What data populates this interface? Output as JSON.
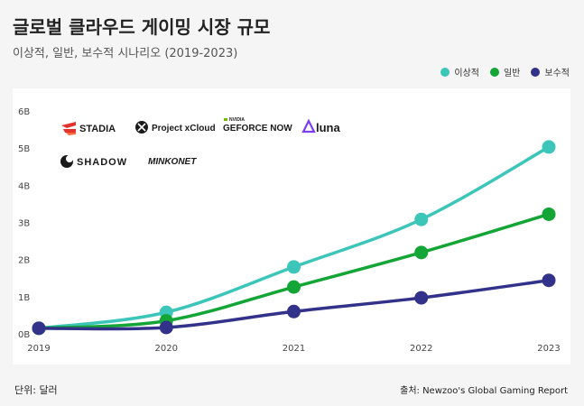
{
  "title": "글로벌 클라우드 게이밍 시장 규모",
  "subtitle": "이상적, 일반, 보수적 시나리오 (2019-2023)",
  "footer": {
    "unit": "단위: 달러",
    "source": "출처: Newzoo's Global Gaming Report"
  },
  "logos": [
    "STADIA",
    "Project xCloud",
    "GEFORCE NOW",
    "luna",
    "SHADOW",
    "MINKONET"
  ],
  "colors": {
    "ideal": "#3cc5b9",
    "normal": "#13a536",
    "conservative": "#33328a"
  },
  "chart_data": {
    "type": "line",
    "title": "글로벌 클라우드 게이밍 시장 규모",
    "subtitle": "이상적, 일반, 보수적 시나리오 (2019-2023)",
    "x": [
      2019,
      2020,
      2021,
      2022,
      2023
    ],
    "y_ticks": [
      "0B",
      "1B",
      "2B",
      "3B",
      "4B",
      "5B",
      "6B"
    ],
    "ylim": [
      0,
      6
    ],
    "legend_position": "top-right",
    "series": [
      {
        "name": "이상적",
        "values": [
          0.15,
          0.58,
          1.8,
          3.08,
          5.03
        ]
      },
      {
        "name": "일반",
        "values": [
          0.15,
          0.35,
          1.26,
          2.19,
          3.22
        ]
      },
      {
        "name": "보수적",
        "values": [
          0.15,
          0.17,
          0.6,
          0.97,
          1.44
        ]
      }
    ]
  }
}
